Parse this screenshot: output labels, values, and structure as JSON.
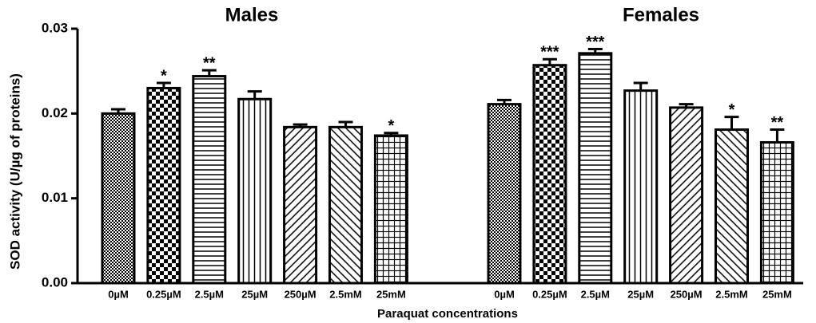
{
  "chart_data": {
    "type": "bar",
    "ylabel": "SOD activity (U/µg of proteins)",
    "xlabel": "Paraquat concentrations",
    "categories": [
      "0µM",
      "0.25µM",
      "2.5µM",
      "25µM",
      "250µM",
      "2.5mM",
      "25mM"
    ],
    "patterns": [
      "dots",
      "checker",
      "hlines",
      "vlines",
      "diag-up",
      "diag-down",
      "grid"
    ],
    "color": "#000000",
    "ylim": [
      0,
      0.03
    ],
    "yticks": [
      {
        "value": 0,
        "label": "0.00"
      },
      0.01,
      0.02,
      0.03
    ],
    "groups": [
      {
        "name": "Males",
        "values": [
          0.02,
          0.023,
          0.0244,
          0.0217,
          0.0184,
          0.0184,
          0.0174
        ],
        "errors": [
          0.0005,
          0.0006,
          0.0007,
          0.0009,
          0.0003,
          0.0006,
          0.0003
        ],
        "annotations": [
          null,
          "*",
          "**",
          null,
          null,
          null,
          "*"
        ]
      },
      {
        "name": "Females",
        "values": [
          0.0211,
          0.0257,
          0.0271,
          0.0227,
          0.0207,
          0.0181,
          0.0166
        ],
        "errors": [
          0.0005,
          0.0007,
          0.0005,
          0.0009,
          0.0004,
          0.0015,
          0.0015
        ],
        "annotations": [
          null,
          "***",
          "***",
          null,
          null,
          "*",
          "**"
        ]
      }
    ]
  }
}
